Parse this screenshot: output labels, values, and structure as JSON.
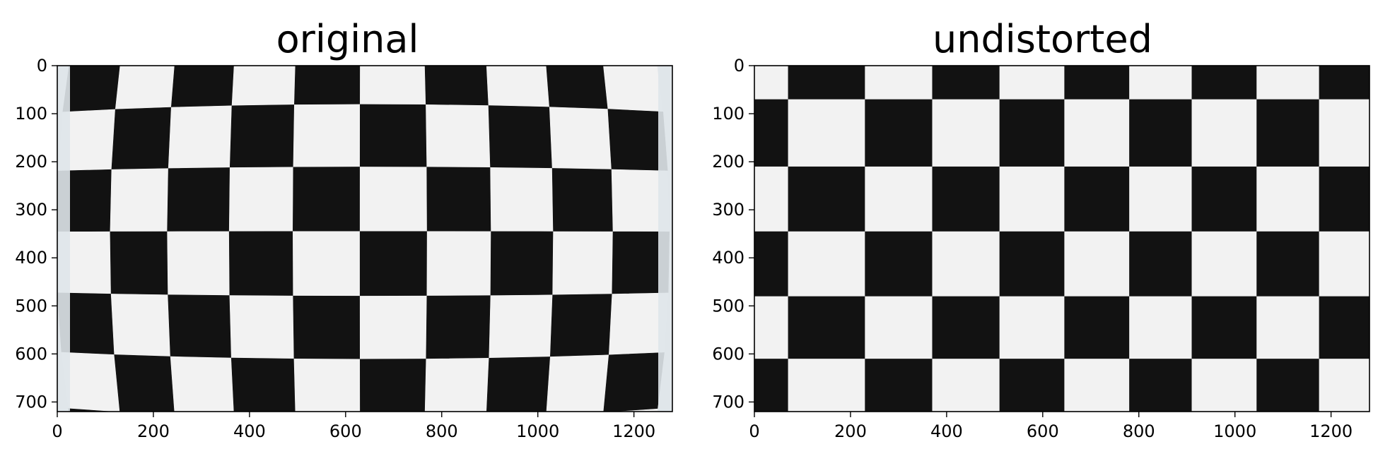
{
  "panels": [
    {
      "title": "original",
      "x_ticks": [
        "0",
        "200",
        "400",
        "600",
        "800",
        "1000",
        "1200"
      ],
      "y_ticks": [
        "0",
        "100",
        "200",
        "300",
        "400",
        "500",
        "600",
        "700"
      ],
      "image_size": [
        1280,
        720
      ],
      "image": "distorted checkerboard photo"
    },
    {
      "title": "undistorted",
      "x_ticks": [
        "0",
        "200",
        "400",
        "600",
        "800",
        "1000",
        "1200"
      ],
      "y_ticks": [
        "0",
        "100",
        "200",
        "300",
        "400",
        "500",
        "600",
        "700"
      ],
      "image_size": [
        1280,
        720
      ],
      "image": "undistorted checkerboard photo"
    }
  ]
}
